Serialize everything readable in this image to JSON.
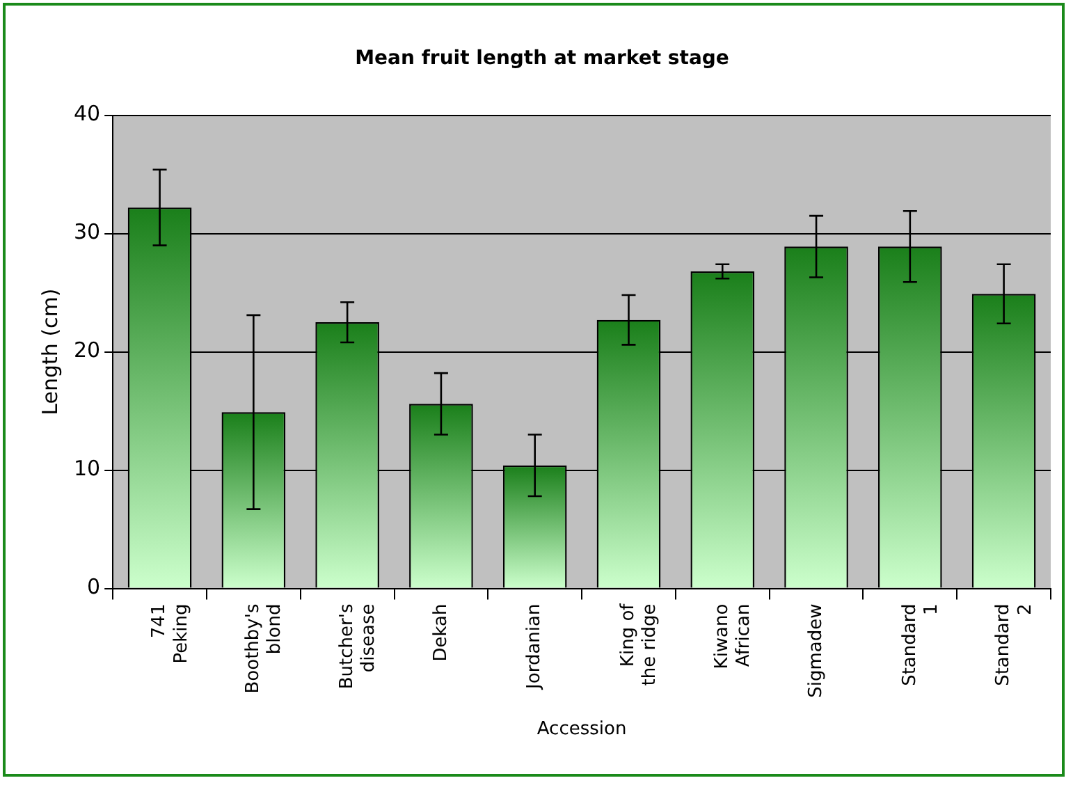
{
  "chart_data": {
    "type": "bar",
    "title": "Mean fruit length at market stage",
    "xlabel": "Accession",
    "ylabel": "Length (cm)",
    "categories": [
      "741 Peking",
      "Boothby's blond",
      "Butcher's disease",
      "Dekah",
      "Jordanian",
      "King of the ridge",
      "Kiwano African",
      "Sigmadew",
      "Standard 1",
      "Standard 2"
    ],
    "values": [
      32.2,
      14.9,
      22.5,
      15.6,
      10.4,
      22.7,
      26.8,
      28.9,
      28.9,
      24.9
    ],
    "errors": [
      3.2,
      8.2,
      1.7,
      2.6,
      2.6,
      2.1,
      0.6,
      2.6,
      3.0,
      2.5
    ],
    "color": "#1a7f1a",
    "ylim": [
      0,
      40
    ],
    "yticks": [
      0,
      10,
      20,
      30,
      40
    ],
    "grid": "y",
    "legend": false
  }
}
